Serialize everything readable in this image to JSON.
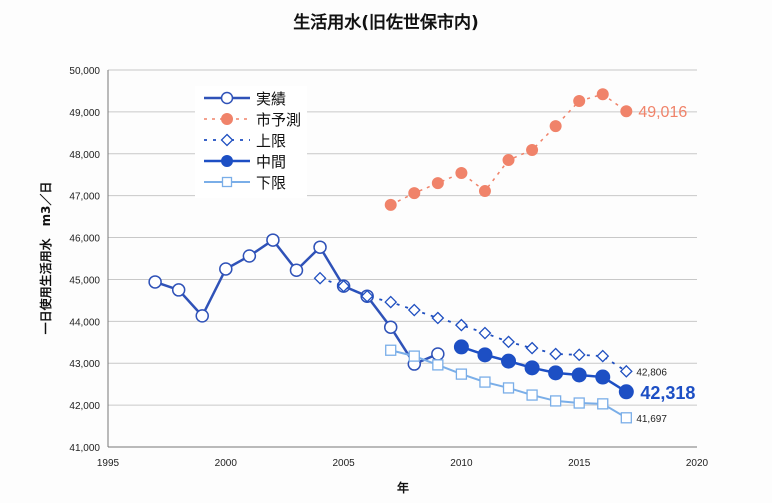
{
  "chart_data": {
    "type": "line",
    "title": "生活用水(旧佐世保市内)",
    "xlabel": "年",
    "ylabel": "一日使用生活用水　m3／日",
    "xlim": [
      1995,
      2020
    ],
    "ylim": [
      41000,
      50000
    ],
    "xticks": [
      "1995",
      "2000",
      "2005",
      "2010",
      "2015",
      "2020"
    ],
    "yticks": [
      "41,000",
      "42,000",
      "43,000",
      "44,000",
      "45,000",
      "46,000",
      "47,000",
      "48,000",
      "49,000",
      "50,000"
    ],
    "legend_position": "top-left",
    "grid": true,
    "series": [
      {
        "name": "実績",
        "color": "#2f52b8",
        "style": "solid-open-circle",
        "x": [
          1997,
          1998,
          1999,
          2000,
          2001,
          2002,
          2003,
          2004,
          2005,
          2006,
          2007,
          2008,
          2009
        ],
        "values": [
          44940,
          44750,
          44130,
          45250,
          45560,
          45940,
          45220,
          45770,
          44840,
          44600,
          43860,
          42980,
          43220
        ]
      },
      {
        "name": "市予測",
        "color": "#f0836a",
        "style": "dashed-filled-circle",
        "x": [
          2007,
          2008,
          2009,
          2010,
          2011,
          2012,
          2013,
          2014,
          2015,
          2016,
          2017
        ],
        "values": [
          46780,
          47060,
          47300,
          47540,
          47110,
          47850,
          48090,
          48660,
          49260,
          49420,
          49016
        ]
      },
      {
        "name": "上限",
        "color": "#1f4fc0",
        "style": "dashed-open-diamond",
        "x": [
          2004,
          2005,
          2006,
          2007,
          2008,
          2009,
          2010,
          2011,
          2012,
          2013,
          2014,
          2015,
          2016,
          2017
        ],
        "values": [
          45030,
          44840,
          44600,
          44460,
          44270,
          44080,
          43910,
          43720,
          43510,
          43360,
          43220,
          43200,
          43170,
          42806
        ]
      },
      {
        "name": "中間",
        "color": "#1d4fc4",
        "style": "solid-filled-circle",
        "x": [
          2010,
          2011,
          2012,
          2013,
          2014,
          2015,
          2016,
          2017
        ],
        "values": [
          43390,
          43200,
          43050,
          42890,
          42770,
          42720,
          42670,
          42318
        ]
      },
      {
        "name": "下限",
        "color": "#7aaee8",
        "style": "solid-open-square",
        "x": [
          2007,
          2008,
          2009,
          2010,
          2011,
          2012,
          2013,
          2014,
          2015,
          2016,
          2017
        ],
        "values": [
          43310,
          43170,
          42960,
          42740,
          42550,
          42410,
          42240,
          42100,
          42050,
          42030,
          41697
        ]
      }
    ],
    "annotations": [
      {
        "text": "49,016",
        "series": "市予測",
        "x": 2017
      },
      {
        "text": "42,806",
        "series": "上限",
        "x": 2017
      },
      {
        "text": "42,318",
        "series": "中間",
        "x": 2017
      },
      {
        "text": "41,697",
        "series": "下限",
        "x": 2017
      }
    ]
  }
}
